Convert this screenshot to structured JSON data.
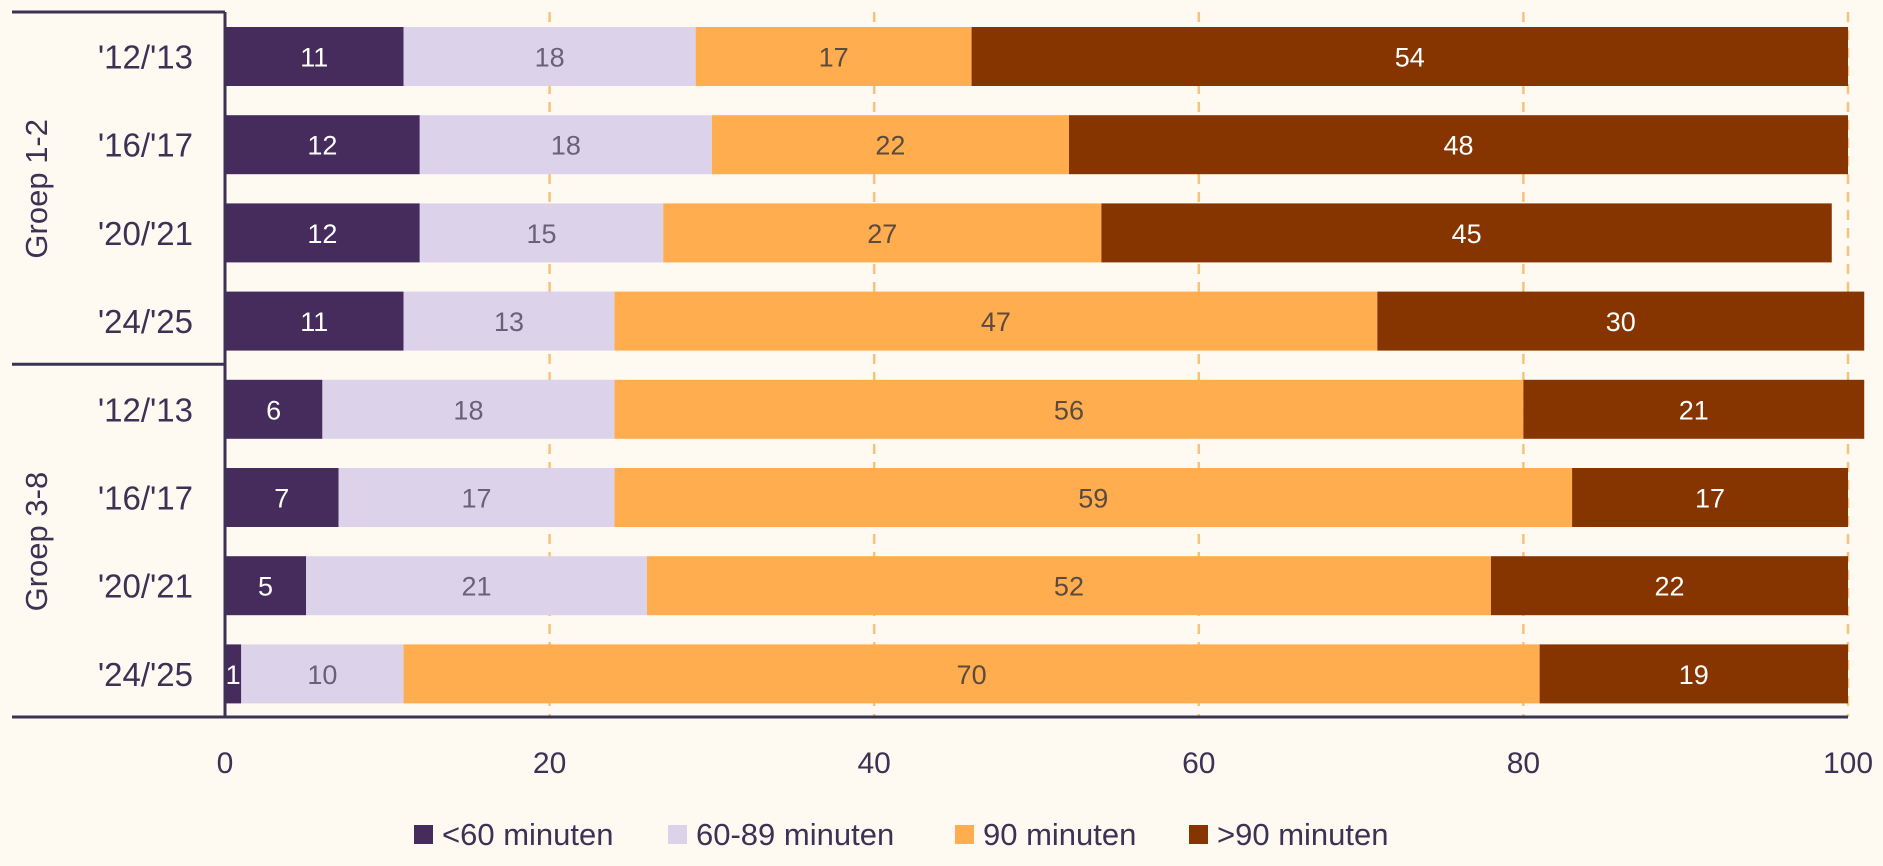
{
  "chart_data": {
    "type": "bar",
    "orientation": "horizontal",
    "stacked": true,
    "xlim": [
      0,
      100
    ],
    "xticks": [
      "0",
      "20",
      "40",
      "60",
      "80",
      "100"
    ],
    "grid": "vertical dashed",
    "legend_position": "bottom",
    "groups": [
      {
        "name": "Groep 1-2",
        "categories": [
          "'12/'13",
          "'16/'17",
          "'20/'21",
          "'24/'25"
        ]
      },
      {
        "name": "Groep 3-8",
        "categories": [
          "'12/'13",
          "'16/'17",
          "'20/'21",
          "'24/'25"
        ]
      }
    ],
    "series": [
      {
        "name": "<60 minuten",
        "color": "#452c5c",
        "label_color": "#ffffff",
        "values": [
          11,
          12,
          12,
          11,
          6,
          7,
          5,
          1
        ]
      },
      {
        "name": "60-89 minuten",
        "color": "#dcd3ea",
        "label_color": "#6a6178",
        "values": [
          18,
          18,
          15,
          13,
          18,
          17,
          21,
          10
        ]
      },
      {
        "name": "90 minuten",
        "color": "#ffad4e",
        "label_color": "#5b4a40",
        "values": [
          17,
          22,
          27,
          47,
          56,
          59,
          52,
          70
        ]
      },
      {
        "name": ">90 minuten",
        "color": "#863500",
        "label_color": "#ffffff",
        "values": [
          54,
          48,
          45,
          30,
          21,
          17,
          22,
          19
        ]
      }
    ]
  }
}
